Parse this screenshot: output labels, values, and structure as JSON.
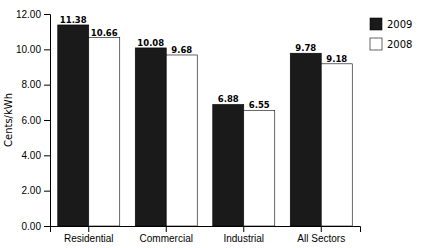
{
  "chart_data": {
    "type": "bar",
    "categories": [
      "Residential",
      "Commercial",
      "Industrial",
      "All Sectors"
    ],
    "series": [
      {
        "name": "2009",
        "color": "#1a1a1a",
        "values": [
          11.38,
          10.08,
          6.88,
          9.78
        ]
      },
      {
        "name": "2008",
        "color": "#ffffff",
        "values": [
          10.66,
          9.68,
          6.55,
          9.18
        ]
      }
    ],
    "ylabel": "Cents/kWh",
    "ylim": [
      0,
      12.0
    ],
    "yticks": [
      {
        "value": 0.0,
        "label": "0.00"
      },
      {
        "value": 2.0,
        "label": "2.00"
      },
      {
        "value": 4.0,
        "label": "4.00"
      },
      {
        "value": 6.0,
        "label": "6.00"
      },
      {
        "value": 8.0,
        "label": "8.00"
      },
      {
        "value": 10.0,
        "label": "10.00"
      },
      {
        "value": 12.0,
        "label": "12.00"
      }
    ],
    "grid": false,
    "legend": "right",
    "data_labels": true
  }
}
